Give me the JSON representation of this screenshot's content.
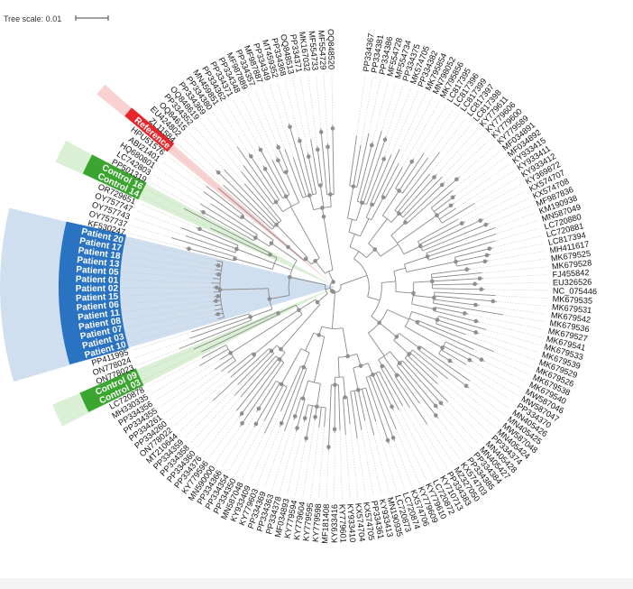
{
  "tree_scale": {
    "label": "Tree scale: 0.01"
  },
  "colors": {
    "patient": "#2a73c3",
    "control": "#3aa52f",
    "reference": "#e8262a",
    "patient_clade": "#c7d9ec",
    "control_clade": "#d3edcc",
    "reference_clade": "#f8c9c9",
    "branch": "#8a8a8a",
    "node": "#8f8f8f"
  },
  "leaves": [
    {
      "label": "PP334367"
    },
    {
      "label": "PP334381"
    },
    {
      "label": "PP334386"
    },
    {
      "label": "MF554728"
    },
    {
      "label": "MF554734"
    },
    {
      "label": "PP334375"
    },
    {
      "label": "MK574705"
    },
    {
      "label": "PP334382"
    },
    {
      "label": "MK795854"
    },
    {
      "label": "MN798052"
    },
    {
      "label": "MK795856"
    },
    {
      "label": "LC817395"
    },
    {
      "label": "LC817396"
    },
    {
      "label": "LC817399"
    },
    {
      "label": "LC817397"
    },
    {
      "label": "LC817398"
    },
    {
      "label": "KY779611"
    },
    {
      "label": "KY779606"
    },
    {
      "label": "KY779600"
    },
    {
      "label": "KY779589"
    },
    {
      "label": "MF034891"
    },
    {
      "label": "MF034892"
    },
    {
      "label": "KY933415"
    },
    {
      "label": "KY933411"
    },
    {
      "label": "KY933412"
    },
    {
      "label": "KY369872"
    },
    {
      "label": "KX574707"
    },
    {
      "label": "KX574708"
    },
    {
      "label": "MF987836"
    },
    {
      "label": "KM190938"
    },
    {
      "label": "MN587049"
    },
    {
      "label": "LC720880"
    },
    {
      "label": "LC720881"
    },
    {
      "label": "LC817394"
    },
    {
      "label": "MH411617"
    },
    {
      "label": "MK679525"
    },
    {
      "label": "MK679528"
    },
    {
      "label": "FJ455842"
    },
    {
      "label": "EU326526"
    },
    {
      "label": "NC_075446"
    },
    {
      "label": "MK679535"
    },
    {
      "label": "MK679531"
    },
    {
      "label": "MK679542"
    },
    {
      "label": "MK679536"
    },
    {
      "label": "MK679527"
    },
    {
      "label": "MK679541"
    },
    {
      "label": "MK679533"
    },
    {
      "label": "MK679539"
    },
    {
      "label": "MK679529"
    },
    {
      "label": "MK679526"
    },
    {
      "label": "MK679538"
    },
    {
      "label": "MK679540"
    },
    {
      "label": "MW587046"
    },
    {
      "label": "MW587047"
    },
    {
      "label": "PP334370"
    },
    {
      "label": "MN405426"
    },
    {
      "label": "MN405425"
    },
    {
      "label": "MW587048"
    },
    {
      "label": "MN405424"
    },
    {
      "label": "PP334374"
    },
    {
      "label": "MN405428"
    },
    {
      "label": "MN405427"
    },
    {
      "label": "PP334384"
    },
    {
      "label": "PP334385"
    },
    {
      "label": "KX574703"
    },
    {
      "label": "MZ327050"
    },
    {
      "label": "PP334383"
    },
    {
      "label": "KY710713"
    },
    {
      "label": "LC720872"
    },
    {
      "label": "KY779610"
    },
    {
      "label": "KY779609"
    },
    {
      "label": "KX574706"
    },
    {
      "label": "LC720874"
    },
    {
      "label": "LC720873"
    },
    {
      "label": "MN190935"
    },
    {
      "label": "KY933413"
    },
    {
      "label": "PP334361"
    },
    {
      "label": "KX574705"
    },
    {
      "label": "KX574704"
    },
    {
      "label": "KY933410"
    },
    {
      "label": "KY779601"
    },
    {
      "label": "KY933416"
    },
    {
      "label": "MF181408"
    },
    {
      "label": "KY779598"
    },
    {
      "label": "KY779595"
    },
    {
      "label": "KY779604"
    },
    {
      "label": "KY779594"
    },
    {
      "label": "MF034893"
    },
    {
      "label": "PP334378"
    },
    {
      "label": "PP334363"
    },
    {
      "label": "PP334369"
    },
    {
      "label": "KY779603"
    },
    {
      "label": "KY933409"
    },
    {
      "label": "MN587048"
    },
    {
      "label": "PP334350"
    },
    {
      "label": "PP334354"
    },
    {
      "label": "PP334366"
    },
    {
      "label": "MN590000"
    },
    {
      "label": "KY779596"
    },
    {
      "label": "PP334376"
    },
    {
      "label": "PP334360"
    },
    {
      "label": "PP334358"
    },
    {
      "label": "PP334359"
    },
    {
      "label": "MT210644"
    },
    {
      "label": "ON778022"
    },
    {
      "label": "PP334260"
    },
    {
      "label": "PP334261"
    },
    {
      "label": "PP334355"
    },
    {
      "label": "PP334356"
    },
    {
      "label": "MH330335"
    },
    {
      "label": "LC720878"
    },
    {
      "label": "Control 03",
      "group": "control"
    },
    {
      "label": "Control 09",
      "group": "control"
    },
    {
      "label": "ON778023"
    },
    {
      "label": "ON778024"
    },
    {
      "label": "PP411995"
    },
    {
      "label": "Patient 10",
      "group": "patient"
    },
    {
      "label": "Patient 03",
      "group": "patient"
    },
    {
      "label": "Patient 07",
      "group": "patient"
    },
    {
      "label": "Patient 08",
      "group": "patient"
    },
    {
      "label": "Patient 11",
      "group": "patient"
    },
    {
      "label": "Patient 06",
      "group": "patient"
    },
    {
      "label": "Patient 15",
      "group": "patient"
    },
    {
      "label": "Patient 02",
      "group": "patient"
    },
    {
      "label": "Patient 01",
      "group": "patient"
    },
    {
      "label": "Patient 05",
      "group": "patient"
    },
    {
      "label": "Patient 13",
      "group": "patient"
    },
    {
      "label": "Patient 18",
      "group": "patient"
    },
    {
      "label": "Patient 17",
      "group": "patient"
    },
    {
      "label": "Patient 20",
      "group": "patient"
    },
    {
      "label": "KF530247"
    },
    {
      "label": "OY757737"
    },
    {
      "label": "OY757743"
    },
    {
      "label": "OY757747"
    },
    {
      "label": "OR729651"
    },
    {
      "label": "Control 14",
      "group": "control"
    },
    {
      "label": "Control 16",
      "group": "control"
    },
    {
      "label": "PP501319"
    },
    {
      "label": "LC742803"
    },
    {
      "label": "HQ680801"
    },
    {
      "label": "ABI21401"
    },
    {
      "label": "HPU51576"
    },
    {
      "label": "Reference",
      "group": "reference"
    },
    {
      "label": "ZL11584"
    },
    {
      "label": "EU424802"
    },
    {
      "label": "OQ84615"
    },
    {
      "label": "PP334352"
    },
    {
      "label": "OQ848619"
    },
    {
      "label": "PP334369"
    },
    {
      "label": "PP334380"
    },
    {
      "label": "MN459851"
    },
    {
      "label": "PP334362"
    },
    {
      "label": "PP334371"
    },
    {
      "label": "PP334348"
    },
    {
      "label": "MF987889"
    },
    {
      "label": "PP334357"
    },
    {
      "label": "MF987887"
    },
    {
      "label": "PP334349"
    },
    {
      "label": "MT459352"
    },
    {
      "label": "PP334368"
    },
    {
      "label": "OQ848513"
    },
    {
      "label": "PP334371"
    },
    {
      "label": "MK167032"
    },
    {
      "label": "MF554733"
    },
    {
      "label": "MF554729"
    },
    {
      "label": "OQ848520"
    }
  ]
}
